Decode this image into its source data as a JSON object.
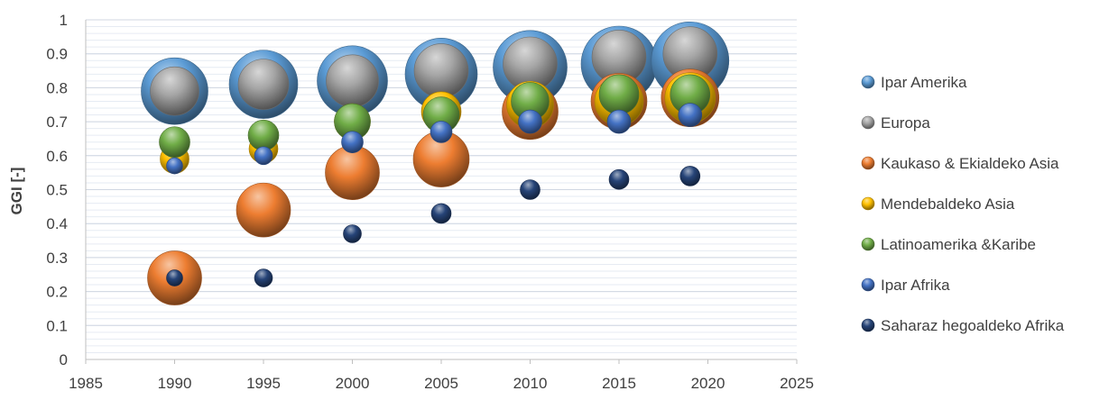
{
  "chart_data": {
    "type": "bubble",
    "title": "",
    "xlabel": "",
    "ylabel": "GGI [-]",
    "xlim": [
      1985,
      2025
    ],
    "ylim": [
      0,
      1
    ],
    "x_ticks": [
      "1985",
      "1990",
      "1995",
      "2000",
      "2005",
      "2010",
      "2015",
      "2020",
      "2025"
    ],
    "y_ticks": [
      "0",
      "0.1",
      "0.2",
      "0.3",
      "0.4",
      "0.5",
      "0.6",
      "0.7",
      "0.8",
      "0.9",
      "1"
    ],
    "grid": "horizontal",
    "legend_position": "right",
    "series": [
      {
        "name": "Ipar Amerika",
        "color": "#5b9bd5",
        "points": [
          {
            "x": 1990,
            "y": 0.79,
            "size": 37
          },
          {
            "x": 1995,
            "y": 0.81,
            "size": 38
          },
          {
            "x": 2000,
            "y": 0.82,
            "size": 39
          },
          {
            "x": 2005,
            "y": 0.84,
            "size": 40
          },
          {
            "x": 2010,
            "y": 0.86,
            "size": 41
          },
          {
            "x": 2015,
            "y": 0.87,
            "size": 42
          },
          {
            "x": 2019,
            "y": 0.88,
            "size": 43
          }
        ]
      },
      {
        "name": "Europa",
        "color": "#a5a5a5",
        "points": [
          {
            "x": 1990,
            "y": 0.79,
            "size": 27
          },
          {
            "x": 1995,
            "y": 0.81,
            "size": 28
          },
          {
            "x": 2000,
            "y": 0.82,
            "size": 29
          },
          {
            "x": 2005,
            "y": 0.85,
            "size": 30
          },
          {
            "x": 2010,
            "y": 0.87,
            "size": 30
          },
          {
            "x": 2015,
            "y": 0.89,
            "size": 30
          },
          {
            "x": 2019,
            "y": 0.9,
            "size": 30
          }
        ]
      },
      {
        "name": "Kaukaso & Ekialdeko Asia",
        "color": "#ed7d31",
        "points": [
          {
            "x": 1990,
            "y": 0.24,
            "size": 30
          },
          {
            "x": 1995,
            "y": 0.44,
            "size": 30
          },
          {
            "x": 2000,
            "y": 0.55,
            "size": 30
          },
          {
            "x": 2005,
            "y": 0.59,
            "size": 31
          },
          {
            "x": 2010,
            "y": 0.73,
            "size": 31
          },
          {
            "x": 2015,
            "y": 0.76,
            "size": 31
          },
          {
            "x": 2019,
            "y": 0.77,
            "size": 32
          }
        ]
      },
      {
        "name": "Mendebaldeko Asia",
        "color": "#ffc000",
        "points": [
          {
            "x": 1990,
            "y": 0.59,
            "size": 16
          },
          {
            "x": 1995,
            "y": 0.62,
            "size": 16
          },
          {
            "x": 2000,
            "y": 0.7,
            "size": 20
          },
          {
            "x": 2005,
            "y": 0.73,
            "size": 22
          },
          {
            "x": 2010,
            "y": 0.75,
            "size": 26
          },
          {
            "x": 2015,
            "y": 0.76,
            "size": 27
          },
          {
            "x": 2019,
            "y": 0.77,
            "size": 28
          }
        ]
      },
      {
        "name": "Latinoamerika &Karibe",
        "color": "#70ad47",
        "points": [
          {
            "x": 1990,
            "y": 0.64,
            "size": 17
          },
          {
            "x": 1995,
            "y": 0.66,
            "size": 17
          },
          {
            "x": 2000,
            "y": 0.7,
            "size": 20
          },
          {
            "x": 2005,
            "y": 0.72,
            "size": 20
          },
          {
            "x": 2010,
            "y": 0.76,
            "size": 21
          },
          {
            "x": 2015,
            "y": 0.78,
            "size": 22
          },
          {
            "x": 2019,
            "y": 0.78,
            "size": 22
          }
        ]
      },
      {
        "name": "Ipar Afrika",
        "color": "#4472c4",
        "points": [
          {
            "x": 1990,
            "y": 0.57,
            "size": 9
          },
          {
            "x": 1995,
            "y": 0.6,
            "size": 10
          },
          {
            "x": 2000,
            "y": 0.64,
            "size": 12
          },
          {
            "x": 2005,
            "y": 0.67,
            "size": 12
          },
          {
            "x": 2010,
            "y": 0.7,
            "size": 13
          },
          {
            "x": 2015,
            "y": 0.7,
            "size": 13
          },
          {
            "x": 2019,
            "y": 0.72,
            "size": 13
          }
        ]
      },
      {
        "name": "Saharaz hegoaldeko Afrika",
        "color": "#264478",
        "points": [
          {
            "x": 1990,
            "y": 0.24,
            "size": 9
          },
          {
            "x": 1995,
            "y": 0.24,
            "size": 10
          },
          {
            "x": 2000,
            "y": 0.37,
            "size": 10
          },
          {
            "x": 2005,
            "y": 0.43,
            "size": 11
          },
          {
            "x": 2010,
            "y": 0.5,
            "size": 11
          },
          {
            "x": 2015,
            "y": 0.53,
            "size": 11
          },
          {
            "x": 2019,
            "y": 0.54,
            "size": 11
          }
        ]
      }
    ]
  }
}
